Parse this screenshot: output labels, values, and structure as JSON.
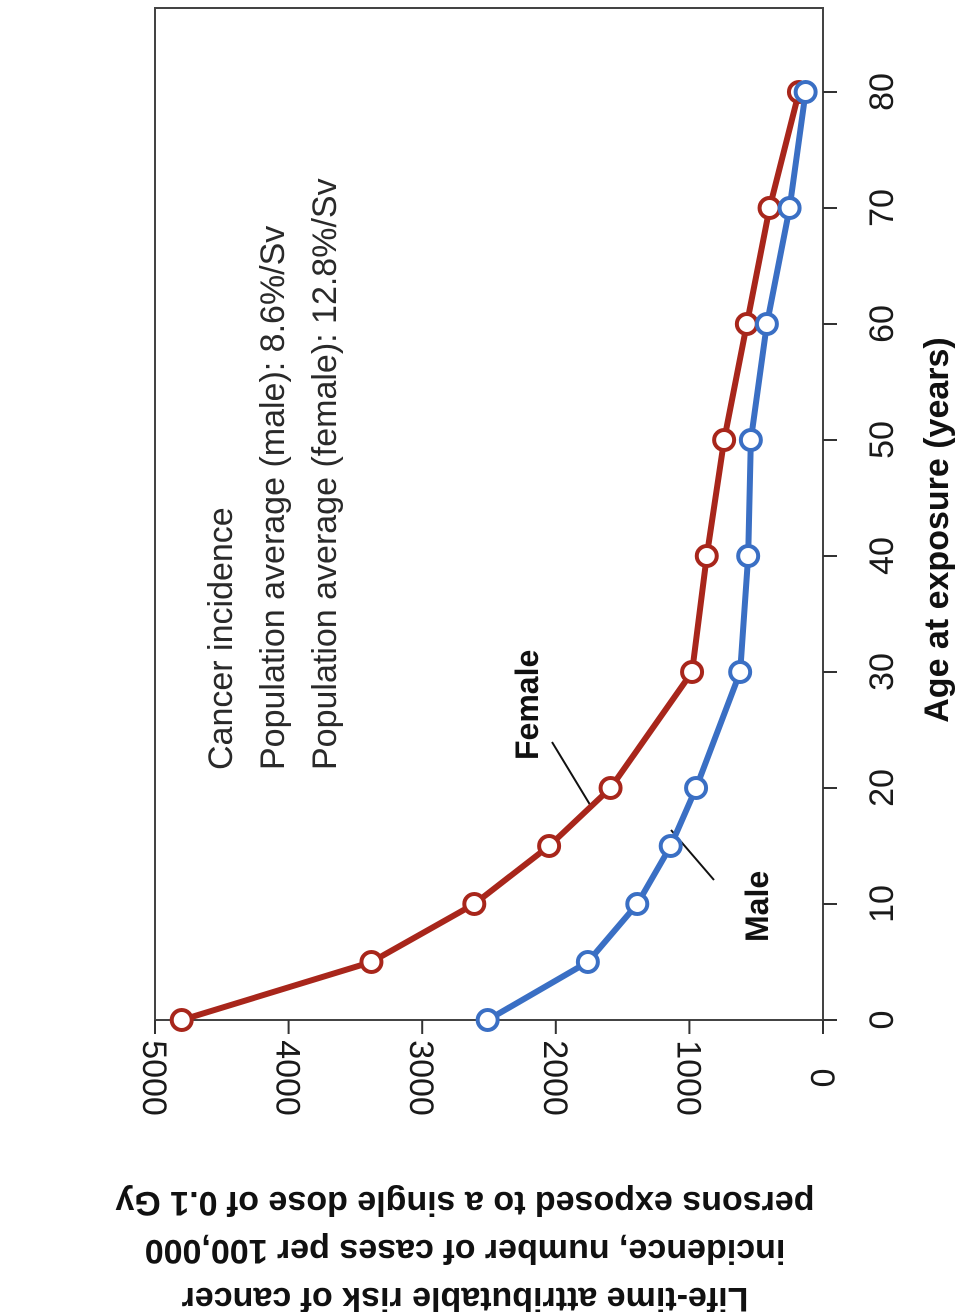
{
  "chart_data": {
    "type": "line",
    "title": "",
    "x": [
      0,
      5,
      10,
      15,
      20,
      30,
      40,
      50,
      60,
      70,
      80
    ],
    "xlabel": "Age at exposure (years)",
    "ylabel": "Life-time attributable risk of cancer incidence, number of cases per 100,000 persons exposed to a single dose of 0.1 Gy",
    "ylabel_lines": [
      "Life-time attributable risk of cancer",
      "incidence, number of cases per 100,000",
      "persons exposed to a single dose of 0.1 Gy"
    ],
    "xlim": [
      0,
      88
    ],
    "ylim": [
      0,
      5000
    ],
    "xticks": [
      0,
      10,
      20,
      30,
      40,
      50,
      60,
      70,
      80
    ],
    "yticks": [
      0,
      1000,
      2000,
      3000,
      4000,
      5000
    ],
    "xtick_labels": [
      "0",
      "10",
      "20",
      "30",
      "40",
      "50",
      "60",
      "70",
      "80"
    ],
    "ytick_labels": [
      "0",
      "1000",
      "2000",
      "3000",
      "4000",
      "5000"
    ],
    "series": [
      {
        "name": "Female",
        "color": "#a8261b",
        "values": [
          4800,
          3380,
          2610,
          2050,
          1590,
          980,
          870,
          740,
          570,
          400,
          180
        ]
      },
      {
        "name": "Male",
        "color": "#3a6fc4",
        "values": [
          2510,
          1760,
          1390,
          1140,
          950,
          620,
          560,
          540,
          420,
          250,
          130
        ]
      }
    ],
    "annotations": [
      "Cancer incidence",
      "Population average (male): 8.6%/Sv",
      "Population average (female): 12.8%/Sv"
    ],
    "grid": false,
    "legend": "none",
    "orientation": "rotated 90° clockwise"
  }
}
